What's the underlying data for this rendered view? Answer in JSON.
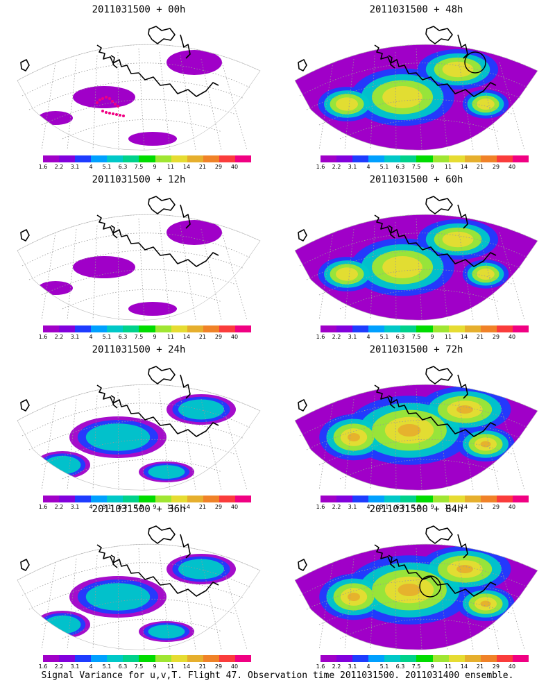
{
  "panels": [
    {
      "title": "2011031500 + 00h",
      "level": 0
    },
    {
      "title": "2011031500 + 48h",
      "level": 2
    },
    {
      "title": "2011031500 + 12h",
      "level": 0
    },
    {
      "title": "2011031500 + 60h",
      "level": 2
    },
    {
      "title": "2011031500 + 24h",
      "level": 1
    },
    {
      "title": "2011031500 + 72h",
      "level": 3
    },
    {
      "title": "2011031500 + 36h",
      "level": 1
    },
    {
      "title": "2011031500 + 84h",
      "level": 3
    }
  ],
  "colorbar": {
    "labels": [
      "1.6",
      "2.2",
      "3.1",
      "4",
      "5.1",
      "6.3",
      "7.5",
      "9",
      "11",
      "14",
      "21",
      "29",
      "40"
    ],
    "colors": [
      "#a000c8",
      "#8200dc",
      "#1e3cff",
      "#00a0ff",
      "#00c8c8",
      "#00d28c",
      "#00dc00",
      "#a0e632",
      "#e6dc32",
      "#e6af2d",
      "#f08228",
      "#fa3c3c",
      "#f00082"
    ]
  },
  "caption": "Signal Variance for u,v,T. Flight 47. Observation time 2011031500. 2011031400 ensemble.",
  "icons": [
    "dotted-graticule",
    "coastline",
    "flight-track",
    "target-circle"
  ]
}
